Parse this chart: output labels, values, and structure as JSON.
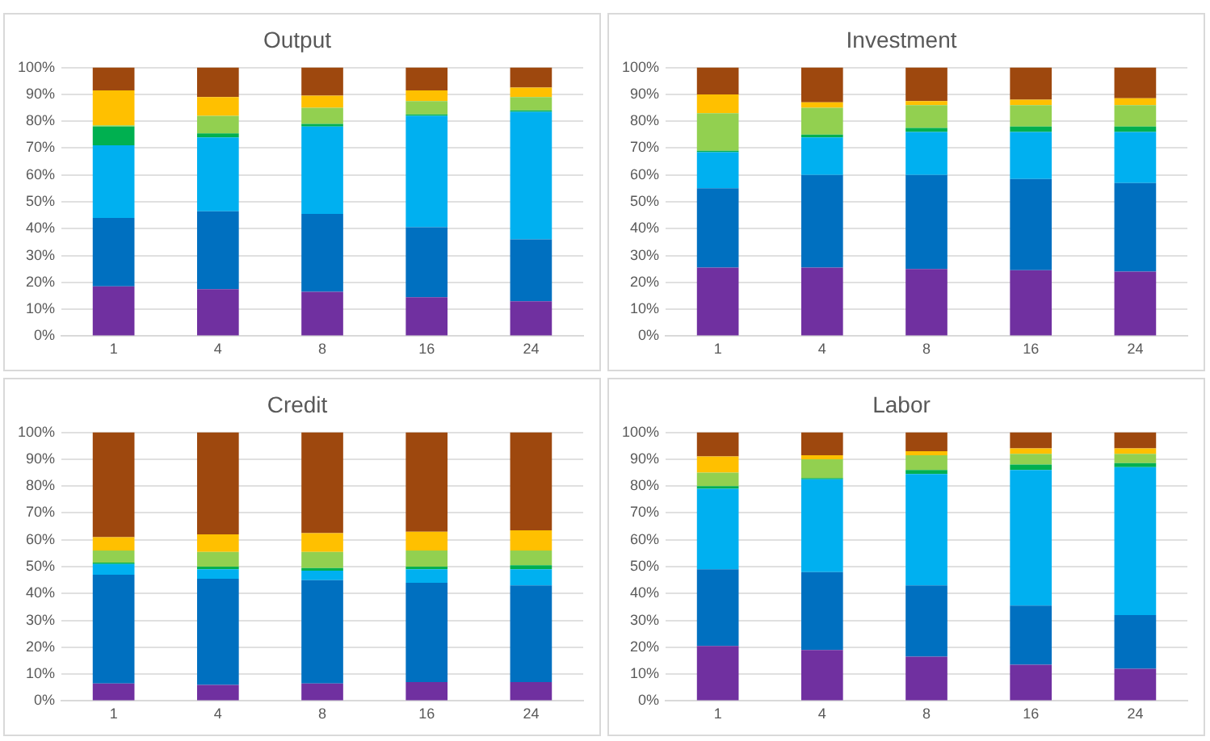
{
  "chart_data": [
    {
      "type": "bar",
      "title": "Output",
      "stacked": true,
      "grid": "y",
      "legend": false,
      "categories": [
        "1",
        "4",
        "8",
        "16",
        "24"
      ],
      "ylim": [
        0,
        100
      ],
      "yticks": [
        {
          "value": 0,
          "label": "0%"
        },
        {
          "value": 10,
          "label": "10%"
        },
        {
          "value": 20,
          "label": "20%"
        },
        {
          "value": 30,
          "label": "30%"
        },
        {
          "value": 40,
          "label": "40%"
        },
        {
          "value": 50,
          "label": "50%"
        },
        {
          "value": 60,
          "label": "60%"
        },
        {
          "value": 70,
          "label": "70%"
        },
        {
          "value": 80,
          "label": "80%"
        },
        {
          "value": 90,
          "label": "90%"
        },
        {
          "value": 100,
          "label": "100%"
        }
      ],
      "series": [
        {
          "color": "#7030a0",
          "values": [
            18.5,
            17.5,
            16.5,
            14.5,
            13
          ]
        },
        {
          "color": "#0070c0",
          "values": [
            25.5,
            29,
            29,
            26,
            23
          ]
        },
        {
          "color": "#00b0f0",
          "values": [
            27,
            27.5,
            32.5,
            41.5,
            47.5
          ]
        },
        {
          "color": "#00b050",
          "values": [
            7,
            1.5,
            1,
            0.5,
            0.5
          ]
        },
        {
          "color": "#92d050",
          "values": [
            0.5,
            6.5,
            6,
            5,
            5
          ]
        },
        {
          "color": "#ffc000",
          "values": [
            13,
            7,
            4.5,
            4,
            3.5
          ]
        },
        {
          "color": "#9e480e",
          "values": [
            8.5,
            11,
            10.5,
            8.5,
            7.5
          ]
        }
      ]
    },
    {
      "type": "bar",
      "title": "Investment",
      "stacked": true,
      "grid": "y",
      "legend": false,
      "categories": [
        "1",
        "4",
        "8",
        "16",
        "24"
      ],
      "ylim": [
        0,
        100
      ],
      "yticks": [
        {
          "value": 0,
          "label": "0%"
        },
        {
          "value": 10,
          "label": "10%"
        },
        {
          "value": 20,
          "label": "20%"
        },
        {
          "value": 30,
          "label": "30%"
        },
        {
          "value": 40,
          "label": "40%"
        },
        {
          "value": 50,
          "label": "50%"
        },
        {
          "value": 60,
          "label": "60%"
        },
        {
          "value": 70,
          "label": "70%"
        },
        {
          "value": 80,
          "label": "80%"
        },
        {
          "value": 90,
          "label": "90%"
        },
        {
          "value": 100,
          "label": "100%"
        }
      ],
      "series": [
        {
          "color": "#7030a0",
          "values": [
            25.5,
            25.5,
            25,
            24.5,
            24
          ]
        },
        {
          "color": "#0070c0",
          "values": [
            29.5,
            34.5,
            35,
            34,
            33
          ]
        },
        {
          "color": "#00b0f0",
          "values": [
            13.5,
            14,
            16,
            17.5,
            19
          ]
        },
        {
          "color": "#00b050",
          "values": [
            0.5,
            1,
            1.5,
            2,
            2
          ]
        },
        {
          "color": "#92d050",
          "values": [
            14,
            10,
            8.5,
            8,
            8
          ]
        },
        {
          "color": "#ffc000",
          "values": [
            7,
            2,
            1.5,
            2,
            2.5
          ]
        },
        {
          "color": "#9e480e",
          "values": [
            10,
            13,
            12.5,
            12,
            11.5
          ]
        }
      ]
    },
    {
      "type": "bar",
      "title": "Credit",
      "stacked": true,
      "grid": "y",
      "legend": false,
      "categories": [
        "1",
        "4",
        "8",
        "16",
        "24"
      ],
      "ylim": [
        0,
        100
      ],
      "yticks": [
        {
          "value": 0,
          "label": "0%"
        },
        {
          "value": 10,
          "label": "10%"
        },
        {
          "value": 20,
          "label": "20%"
        },
        {
          "value": 30,
          "label": "30%"
        },
        {
          "value": 40,
          "label": "40%"
        },
        {
          "value": 50,
          "label": "50%"
        },
        {
          "value": 60,
          "label": "60%"
        },
        {
          "value": 70,
          "label": "70%"
        },
        {
          "value": 80,
          "label": "80%"
        },
        {
          "value": 90,
          "label": "90%"
        },
        {
          "value": 100,
          "label": "100%"
        }
      ],
      "series": [
        {
          "color": "#7030a0",
          "values": [
            6.5,
            6,
            6.5,
            7,
            7
          ]
        },
        {
          "color": "#0070c0",
          "values": [
            40.5,
            39.5,
            38.5,
            37,
            36
          ]
        },
        {
          "color": "#00b0f0",
          "values": [
            4,
            3.5,
            3.5,
            5,
            6
          ]
        },
        {
          "color": "#00b050",
          "values": [
            0.5,
            1,
            1,
            1,
            1.5
          ]
        },
        {
          "color": "#92d050",
          "values": [
            4.5,
            5.5,
            6,
            6,
            5.5
          ]
        },
        {
          "color": "#ffc000",
          "values": [
            5,
            6.5,
            7,
            7,
            7.5
          ]
        },
        {
          "color": "#9e480e",
          "values": [
            39,
            38,
            37.5,
            37,
            36.5
          ]
        }
      ]
    },
    {
      "type": "bar",
      "title": "Labor",
      "stacked": true,
      "grid": "y",
      "legend": false,
      "categories": [
        "1",
        "4",
        "8",
        "16",
        "24"
      ],
      "ylim": [
        0,
        100
      ],
      "yticks": [
        {
          "value": 0,
          "label": "0%"
        },
        {
          "value": 10,
          "label": "10%"
        },
        {
          "value": 20,
          "label": "20%"
        },
        {
          "value": 30,
          "label": "30%"
        },
        {
          "value": 40,
          "label": "40%"
        },
        {
          "value": 50,
          "label": "50%"
        },
        {
          "value": 60,
          "label": "60%"
        },
        {
          "value": 70,
          "label": "70%"
        },
        {
          "value": 80,
          "label": "80%"
        },
        {
          "value": 90,
          "label": "90%"
        },
        {
          "value": 100,
          "label": "100%"
        }
      ],
      "series": [
        {
          "color": "#7030a0",
          "values": [
            20.5,
            19,
            16.5,
            13.5,
            12
          ]
        },
        {
          "color": "#0070c0",
          "values": [
            28.5,
            29,
            26.5,
            22,
            20
          ]
        },
        {
          "color": "#00b0f0",
          "values": [
            30,
            34.5,
            41.5,
            50.5,
            55
          ]
        },
        {
          "color": "#00b050",
          "values": [
            1,
            0.5,
            1.5,
            2,
            1.5
          ]
        },
        {
          "color": "#92d050",
          "values": [
            5,
            7,
            5.5,
            4,
            3.5
          ]
        },
        {
          "color": "#ffc000",
          "values": [
            6,
            1.5,
            1.5,
            2,
            2
          ]
        },
        {
          "color": "#9e480e",
          "values": [
            9,
            8.5,
            7,
            6,
            6
          ]
        }
      ]
    }
  ]
}
